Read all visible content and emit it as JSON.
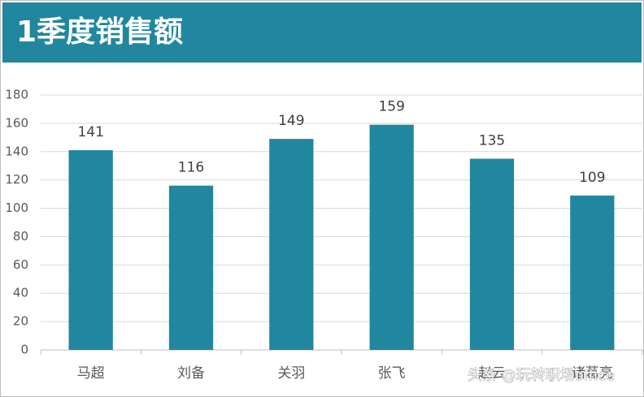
{
  "chart_data": {
    "type": "bar",
    "title": "1季度销售额",
    "categories": [
      "马超",
      "刘备",
      "关羽",
      "张飞",
      "赵云",
      "诸葛亮"
    ],
    "values": [
      141,
      116,
      149,
      159,
      135,
      109
    ],
    "color": "#21879e",
    "ylim": [
      0,
      180
    ],
    "yticks": [
      0,
      20,
      40,
      60,
      80,
      100,
      120,
      140,
      160,
      180
    ],
    "grid": true,
    "watermark": "头条 @玩转职场office"
  }
}
